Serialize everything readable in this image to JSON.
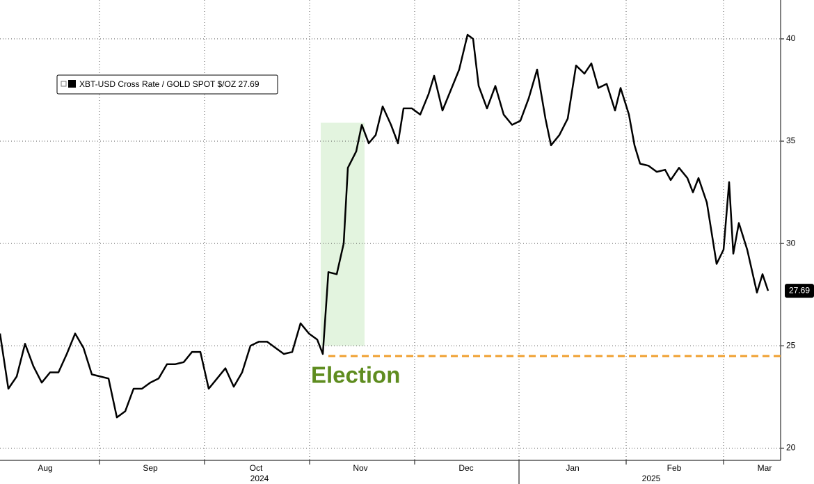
{
  "chart_data": {
    "type": "line",
    "legend": "XBT-USD Cross Rate / GOLD SPOT $/OZ 27.69",
    "last_value_label": "27.69",
    "annotation": "Election",
    "x": [
      0,
      12,
      24,
      36,
      48,
      60,
      72,
      84,
      96,
      108,
      120,
      132,
      144,
      156,
      168,
      180,
      192,
      204,
      216,
      228,
      240,
      252,
      264,
      276,
      288,
      300,
      312,
      324,
      336,
      348,
      360,
      372,
      384,
      396,
      408,
      420,
      432,
      444,
      456,
      464,
      472,
      484,
      494,
      500,
      512,
      520,
      530,
      540,
      550,
      562,
      572,
      580,
      592,
      604,
      616,
      624,
      636,
      648,
      660,
      672,
      680,
      688,
      700,
      712,
      724,
      736,
      748,
      760,
      772,
      784,
      792,
      804,
      816,
      828,
      840,
      850,
      860,
      872,
      884,
      892,
      904,
      912,
      920,
      932,
      944,
      956,
      964,
      976,
      988,
      996,
      1004,
      1016,
      1030,
      1040,
      1048,
      1054,
      1062,
      1074,
      1088,
      1096,
      1104
    ],
    "series": [
      {
        "name": "XBT-USD Cross Rate / GOLD SPOT $/OZ",
        "color": "#000000",
        "values": [
          25.6,
          22.9,
          23.5,
          25.1,
          24.0,
          23.2,
          23.7,
          23.7,
          24.6,
          25.6,
          24.9,
          23.6,
          23.5,
          23.4,
          21.5,
          21.8,
          22.9,
          22.9,
          23.2,
          23.4,
          24.1,
          24.1,
          24.2,
          24.7,
          24.7,
          22.9,
          23.4,
          23.9,
          23.0,
          23.7,
          25.0,
          25.2,
          25.2,
          24.9,
          24.6,
          24.7,
          26.1,
          25.6,
          25.3,
          24.6,
          28.6,
          28.5,
          30.0,
          33.7,
          34.5,
          35.8,
          34.9,
          35.3,
          36.7,
          35.8,
          34.9,
          36.6,
          36.6,
          36.3,
          37.3,
          38.2,
          36.5,
          37.5,
          38.5,
          40.2,
          40.0,
          37.7,
          36.6,
          37.7,
          36.3,
          35.8,
          36.0,
          37.1,
          38.5,
          36.1,
          34.8,
          35.3,
          36.1,
          38.7,
          38.3,
          38.8,
          37.6,
          37.8,
          36.5,
          37.6,
          36.3,
          34.8,
          33.9,
          33.8,
          33.5,
          33.6,
          33.1,
          33.7,
          33.2,
          32.5,
          33.2,
          32.0,
          29.0,
          29.7,
          33.0,
          29.5,
          31.0,
          29.7,
          27.6,
          28.5,
          27.69
        ]
      }
    ],
    "xlim": [
      0,
      1122
    ],
    "x_separators": [
      143,
      294,
      445,
      596,
      746,
      900,
      1040
    ],
    "xlabels": [
      {
        "value": 65,
        "label": "Aug"
      },
      {
        "value": 216,
        "label": "Sep"
      },
      {
        "value": 368,
        "label": "Oct"
      },
      {
        "value": 518,
        "label": "Nov"
      },
      {
        "value": 670,
        "label": "Dec"
      },
      {
        "value": 823,
        "label": "Jan"
      },
      {
        "value": 969,
        "label": "Feb"
      },
      {
        "value": 1099,
        "label": "Mar"
      }
    ],
    "year_labels": [
      {
        "value": 373,
        "label": "2024"
      },
      {
        "value": 936,
        "label": "2025"
      }
    ],
    "year_separator": 746,
    "ylim": [
      19.4,
      41.9
    ],
    "yticks": [
      20,
      25,
      30,
      35,
      40
    ],
    "grid": true,
    "highlight": {
      "x": [
        461,
        524
      ],
      "y": [
        25,
        35.9
      ],
      "color": "#e3f4df"
    },
    "reference": {
      "value": 24.5,
      "x_start": 472,
      "color": "#f0a030"
    },
    "annotation_color": "#5e8c1f"
  }
}
